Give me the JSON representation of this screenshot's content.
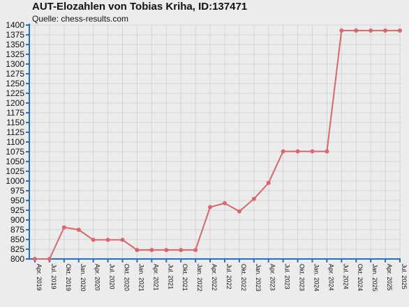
{
  "header": {
    "title": "AUT-Elozahlen von Tobias Kriha, ID:137471",
    "subtitle": "Quelle: chess-results.com"
  },
  "colors": {
    "background": "#ececec",
    "grid": "#d4d4d4",
    "axis": "#1e6fd9",
    "line": "#d9666b"
  },
  "chart_data": {
    "type": "line",
    "title": "AUT-Elozahlen von Tobias Kriha, ID:137471",
    "subtitle": "Quelle: chess-results.com",
    "xlabel": "",
    "ylabel": "",
    "ylim": [
      800,
      1400
    ],
    "yticks": [
      800,
      825,
      850,
      875,
      900,
      925,
      950,
      975,
      1000,
      1025,
      1050,
      1075,
      1100,
      1125,
      1150,
      1175,
      1200,
      1225,
      1250,
      1275,
      1300,
      1325,
      1350,
      1375,
      1400
    ],
    "grid": true,
    "legend": "none",
    "categories": [
      "Apr. 2019",
      "Jul. 2019",
      "Okt. 2019",
      "Jan. 2020",
      "Apr. 2020",
      "Jul. 2020",
      "Okt. 2020",
      "Jan. 2021",
      "Apr. 2021",
      "Jul. 2021",
      "Okt. 2021",
      "Jan. 2022",
      "Apr. 2022",
      "Jul. 2022",
      "Okt. 2022",
      "Jan. 2023",
      "Apr. 2023",
      "Jul. 2023",
      "Okt. 2023",
      "Jan. 2024",
      "Apr. 2024",
      "Jul. 2024",
      "Okt. 2024",
      "Jan. 2025",
      "Apr. 2025",
      "Jul. 2025"
    ],
    "series": [
      {
        "values": [
          800,
          800,
          881,
          875,
          849,
          849,
          849,
          823,
          823,
          823,
          823,
          823,
          933,
          943,
          922,
          954,
          995,
          1076,
          1076,
          1076,
          1076,
          1386,
          1386,
          1386,
          1386,
          1386
        ]
      }
    ]
  }
}
